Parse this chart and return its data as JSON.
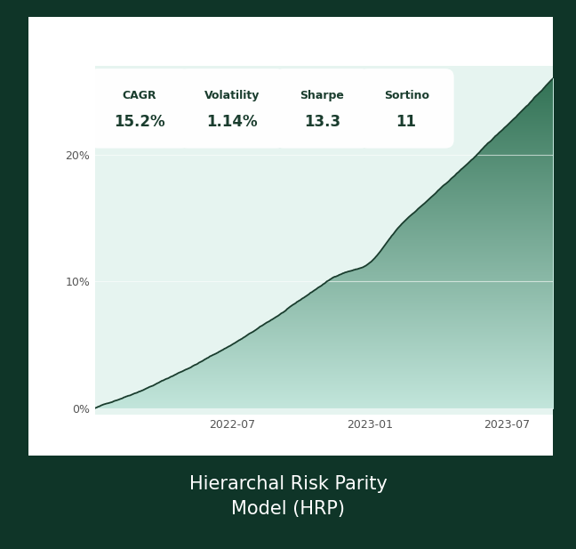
{
  "title": "Hierarchal Risk Parity\nModel (HRP)",
  "title_color": "#ffffff",
  "bg_outer": "#0f3528",
  "bg_card": "#ffffff",
  "bg_chart": "#e6f4f0",
  "line_color": "#1a3d2e",
  "fill_color_dark": "#2d6e50",
  "fill_color_light": "#c5e8de",
  "y_ticks": [
    0,
    10,
    20
  ],
  "y_tick_labels": [
    "0%",
    "10%",
    "20%"
  ],
  "x_tick_labels": [
    "2022-07",
    "2023-01",
    "2023-07"
  ],
  "x_ticks_pos": [
    6,
    12,
    18
  ],
  "stats": [
    {
      "label": "CAGR",
      "value": "15.2%"
    },
    {
      "label": "Volatility",
      "value": "1.14%"
    },
    {
      "label": "Sharpe",
      "value": "13.3"
    },
    {
      "label": "Sortino",
      "value": "11"
    }
  ],
  "ylim": [
    -0.5,
    27
  ],
  "xlim": [
    0,
    20
  ],
  "final_value": 26,
  "noise_seed": 42
}
